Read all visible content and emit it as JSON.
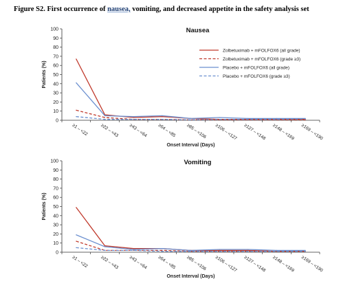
{
  "figure": {
    "title_prefix": "Figure S2. First occurrence of ",
    "title_highlight": "nausea,",
    "title_suffix": " vomiting, and decreased appetite in the safety analysis set"
  },
  "chart_data": [
    {
      "type": "line",
      "title": "Nausea",
      "xlabel": "Onset Interval (Days)",
      "ylabel": "Patients (%)",
      "ylim": [
        0,
        100
      ],
      "yticks": [
        0,
        10,
        20,
        30,
        40,
        50,
        60,
        70,
        80,
        90,
        100
      ],
      "categories": [
        "≥1 – <22",
        "≥22 – <43",
        "≥43 – <64",
        "≥64 – <85",
        "≥85 – <106",
        "≥106 – <127",
        "≥127 – <148",
        "≥148 – <169",
        "≥169 – <190"
      ],
      "legend_position": "top-right",
      "series": [
        {
          "name": "Zolbetuximab + mFOLFOX6 (all grade)",
          "color": "#c0392b",
          "dashed": false,
          "values": [
            67,
            6,
            3,
            4,
            2,
            1,
            1,
            1,
            1
          ]
        },
        {
          "name": "Zolbetuximab + mFOLFOX6 (grade ≥3)",
          "color": "#c0392b",
          "dashed": true,
          "values": [
            11,
            3,
            1,
            1,
            0.5,
            0.5,
            0.5,
            0.5,
            0.5
          ]
        },
        {
          "name": "Placebo + mFOLFOX6 (all grade)",
          "color": "#6b8fcf",
          "dashed": false,
          "values": [
            41,
            5,
            4,
            5,
            2,
            3,
            2,
            2,
            2
          ]
        },
        {
          "name": "Placebo + mFOLFOX6 (grade ≥3)",
          "color": "#6b8fcf",
          "dashed": true,
          "values": [
            4,
            1,
            1,
            1,
            0.5,
            1,
            1,
            1,
            1.5
          ]
        }
      ]
    },
    {
      "type": "line",
      "title": "Vomiting",
      "xlabel": "Onset Interval (Days)",
      "ylabel": "Patients (%)",
      "ylim": [
        0,
        100
      ],
      "yticks": [
        0,
        10,
        20,
        30,
        40,
        50,
        60,
        70,
        80,
        90,
        100
      ],
      "categories": [
        "≥1 – <22",
        "≥22 – <43",
        "≥43 – <64",
        "≥64 – <85",
        "≥85 – <106",
        "≥106 – <127",
        "≥127 – <148",
        "≥148 – <169",
        "≥169 – <190"
      ],
      "series": [
        {
          "color": "#c0392b",
          "dashed": false,
          "values": [
            49,
            7,
            4,
            4,
            2,
            2,
            2,
            1,
            1
          ]
        },
        {
          "color": "#c0392b",
          "dashed": true,
          "values": [
            12,
            2,
            2,
            2,
            1,
            1,
            1,
            1,
            1
          ]
        },
        {
          "color": "#6b8fcf",
          "dashed": false,
          "values": [
            19,
            6,
            3,
            4,
            2,
            3,
            3,
            2,
            2
          ]
        },
        {
          "color": "#6b8fcf",
          "dashed": true,
          "values": [
            5,
            2,
            2,
            1,
            1,
            1,
            1,
            1,
            1
          ]
        }
      ]
    }
  ]
}
